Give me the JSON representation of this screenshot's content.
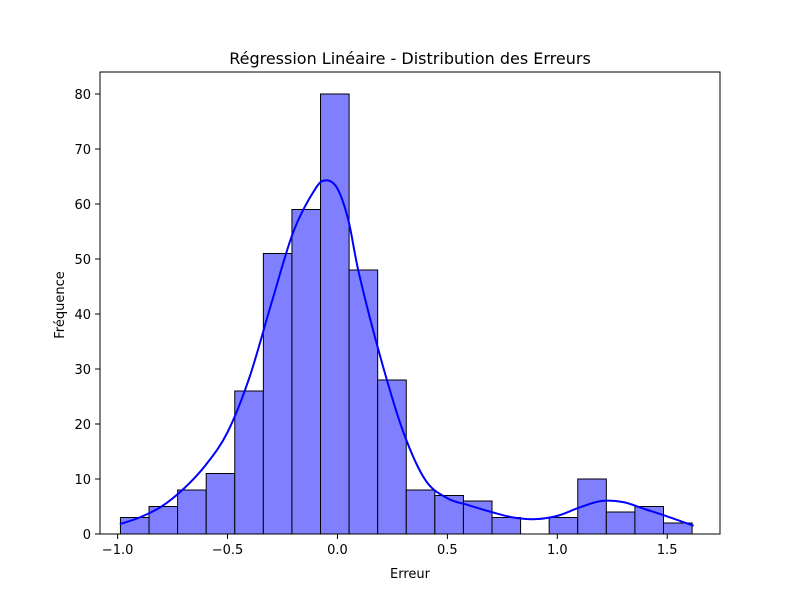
{
  "chart_data": {
    "type": "bar",
    "subtype": "histogram-with-kde",
    "title": "Régression Linéaire - Distribution des Erreurs",
    "xlabel": "Erreur",
    "ylabel": "Fréquence",
    "xlim": [
      -1.08,
      1.74
    ],
    "ylim": [
      0,
      84
    ],
    "xticks": [
      -1.0,
      -0.5,
      0.0,
      0.5,
      1.0,
      1.5
    ],
    "xtick_labels": [
      "−1.0",
      "−0.5",
      "0.0",
      "0.5",
      "1.0",
      "1.5"
    ],
    "yticks": [
      0,
      10,
      20,
      30,
      40,
      50,
      60,
      70,
      80
    ],
    "ytick_labels": [
      "0",
      "10",
      "20",
      "30",
      "40",
      "50",
      "60",
      "70",
      "80"
    ],
    "grid": false,
    "bar_color": "#8080ff",
    "bar_edge_color": "#000000",
    "kde_color": "#0000ff",
    "bins": [
      {
        "x0": -0.987,
        "x1": -0.857,
        "count": 3
      },
      {
        "x0": -0.857,
        "x1": -0.727,
        "count": 5
      },
      {
        "x0": -0.727,
        "x1": -0.597,
        "count": 8
      },
      {
        "x0": -0.597,
        "x1": -0.467,
        "count": 11
      },
      {
        "x0": -0.467,
        "x1": -0.337,
        "count": 26
      },
      {
        "x0": -0.337,
        "x1": -0.207,
        "count": 51
      },
      {
        "x0": -0.207,
        "x1": -0.077,
        "count": 59
      },
      {
        "x0": -0.077,
        "x1": 0.053,
        "count": 80
      },
      {
        "x0": 0.053,
        "x1": 0.183,
        "count": 48
      },
      {
        "x0": 0.183,
        "x1": 0.313,
        "count": 28
      },
      {
        "x0": 0.313,
        "x1": 0.443,
        "count": 8
      },
      {
        "x0": 0.443,
        "x1": 0.573,
        "count": 7
      },
      {
        "x0": 0.573,
        "x1": 0.703,
        "count": 6
      },
      {
        "x0": 0.703,
        "x1": 0.833,
        "count": 3
      },
      {
        "x0": 0.833,
        "x1": 0.963,
        "count": 0
      },
      {
        "x0": 0.963,
        "x1": 1.093,
        "count": 3
      },
      {
        "x0": 1.093,
        "x1": 1.223,
        "count": 10
      },
      {
        "x0": 1.223,
        "x1": 1.353,
        "count": 4
      },
      {
        "x0": 1.353,
        "x1": 1.483,
        "count": 5
      },
      {
        "x0": 1.483,
        "x1": 1.613,
        "count": 2
      }
    ],
    "kde": {
      "x": [
        -0.99,
        -0.9,
        -0.8,
        -0.7,
        -0.6,
        -0.5,
        -0.4,
        -0.3,
        -0.2,
        -0.1,
        -0.05,
        0.0,
        0.05,
        0.1,
        0.2,
        0.3,
        0.4,
        0.5,
        0.6,
        0.7,
        0.8,
        0.9,
        1.0,
        1.1,
        1.2,
        1.3,
        1.4,
        1.5,
        1.62
      ],
      "y": [
        1.8,
        3.0,
        5.0,
        8.2,
        12.5,
        18.5,
        28.5,
        42.0,
        55.0,
        62.8,
        64.3,
        62.8,
        57.0,
        47.0,
        31.5,
        18.5,
        9.8,
        6.5,
        5.2,
        4.0,
        3.0,
        2.7,
        3.3,
        4.8,
        6.0,
        5.8,
        4.5,
        3.2,
        1.5
      ]
    }
  }
}
